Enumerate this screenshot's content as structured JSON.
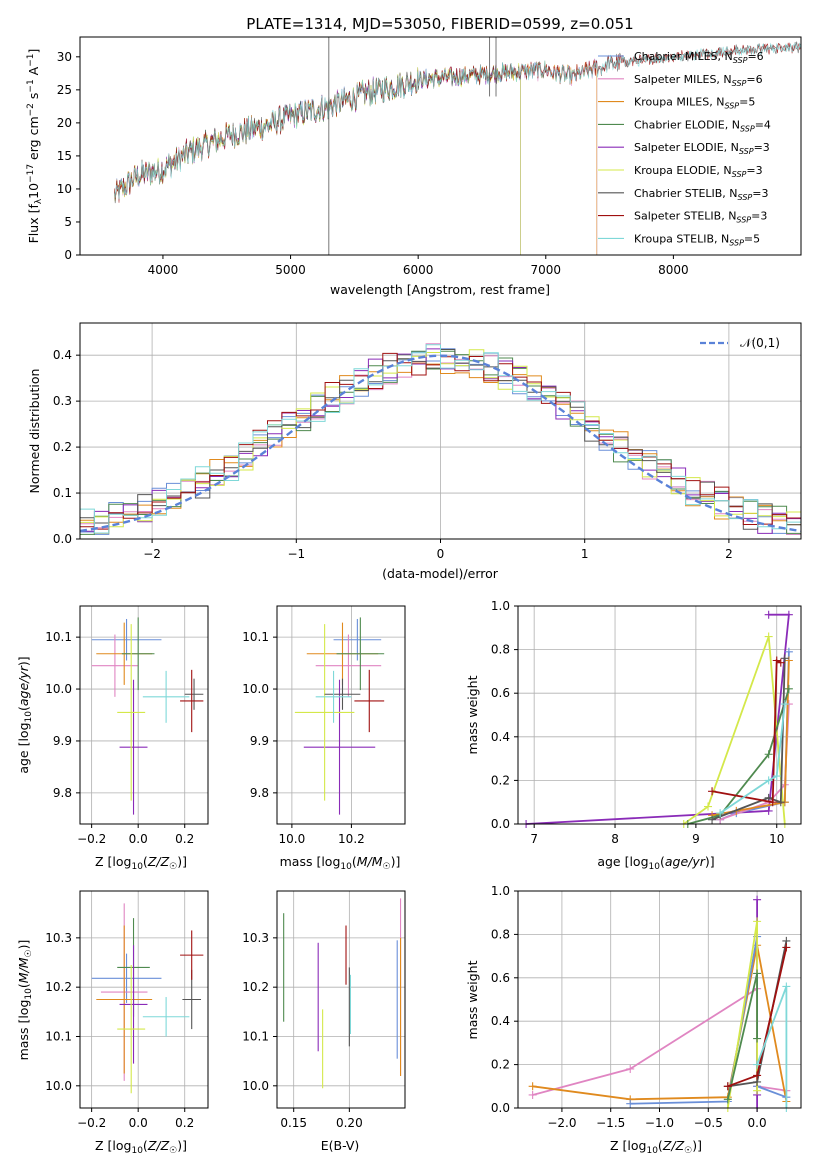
{
  "spec_title": "PLATE=1314, MJD=53050, FIBERID=0599, z=0.051",
  "colors": {
    "Chabrier MILES": "#6a8fd8",
    "Salpeter MILES": "#e085c2",
    "Kroupa MILES": "#e08a1e",
    "Chabrier ELODIE": "#4f8a4f",
    "Salpeter ELODIE": "#8a2bb8",
    "Kroupa ELODIE": "#d4e84a",
    "Chabrier STELIB": "#555555",
    "Salpeter STELIB": "#a01010",
    "Kroupa STELIB": "#7fd8d8"
  },
  "chart_data": [
    {
      "id": "spectrum",
      "type": "line",
      "title": "PLATE=1314, MJD=53050, FIBERID=0599, z=0.051",
      "xlabel": "wavelength [Angstrom, rest frame]",
      "ylabel": "Flux [f_λ10^-17 erg cm^-2 s^-1 A^-1]",
      "xlim": [
        3350,
        9000
      ],
      "ylim": [
        0,
        33
      ],
      "xticks": [
        4000,
        5000,
        6000,
        7000,
        8000
      ],
      "yticks": [
        0,
        5,
        10,
        15,
        20,
        25,
        30
      ],
      "grid": false,
      "legend_position": "top-right",
      "legend": [
        {
          "model": "Chabrier MILES",
          "n": "6"
        },
        {
          "model": "Salpeter MILES",
          "n": "6"
        },
        {
          "model": "Kroupa MILES",
          "n": "5"
        },
        {
          "model": "Chabrier ELODIE",
          "n": "4"
        },
        {
          "model": "Salpeter ELODIE",
          "n": "3"
        },
        {
          "model": "Kroupa ELODIE",
          "n": "3"
        },
        {
          "model": "Chabrier STELIB",
          "n": "3"
        },
        {
          "model": "Salpeter STELIB",
          "n": "3"
        },
        {
          "model": "Kroupa STELIB",
          "n": "5"
        }
      ],
      "continuum": [
        [
          3620,
          9
        ],
        [
          3800,
          12
        ],
        [
          4000,
          13
        ],
        [
          4200,
          15.5
        ],
        [
          4500,
          18
        ],
        [
          4800,
          19.5
        ],
        [
          5000,
          21
        ],
        [
          5300,
          22.5
        ],
        [
          5600,
          24.5
        ],
        [
          6000,
          26.5
        ],
        [
          6300,
          27
        ],
        [
          6600,
          27.5
        ],
        [
          7000,
          28
        ],
        [
          7200,
          27
        ],
        [
          7500,
          29
        ],
        [
          8000,
          30
        ],
        [
          8500,
          31
        ],
        [
          9000,
          31.5
        ]
      ],
      "model_ranges": [
        {
          "model": "Chabrier MILES",
          "x": [
            3620,
            7400
          ]
        },
        {
          "model": "Salpeter MILES",
          "x": [
            3620,
            7400
          ]
        },
        {
          "model": "Kroupa MILES",
          "x": [
            3620,
            7400
          ]
        },
        {
          "model": "Chabrier ELODIE",
          "x": [
            3620,
            6800
          ]
        },
        {
          "model": "Salpeter ELODIE",
          "x": [
            3620,
            6800
          ]
        },
        {
          "model": "Kroupa ELODIE",
          "x": [
            3620,
            6800
          ]
        },
        {
          "model": "Chabrier STELIB",
          "x": [
            3620,
            9000
          ]
        },
        {
          "model": "Salpeter STELIB",
          "x": [
            3620,
            9000
          ]
        },
        {
          "model": "Kroupa STELIB",
          "x": [
            3620,
            9000
          ]
        }
      ]
    },
    {
      "id": "residuals",
      "type": "area",
      "xlabel": "(data-model)/error",
      "ylabel": "Normed distribution",
      "xlim": [
        -2.5,
        2.5
      ],
      "ylim": [
        0,
        0.47
      ],
      "xticks": [
        -2,
        -1,
        0,
        1,
        2
      ],
      "yticks": [
        0.0,
        0.1,
        0.2,
        0.3,
        0.4
      ],
      "grid": true,
      "legend_position": "top-right",
      "reference_curve": {
        "label": "𝒩(0,1)",
        "color": "#5a82d8",
        "mean": 0,
        "sigma": 1
      },
      "histogram_bins": {
        "start": -2.5,
        "width": 0.1,
        "count": 50
      }
    },
    {
      "id": "age-vs-Z",
      "type": "scatter",
      "xlabel": "Z [log10(Z/Z☉)]",
      "ylabel": "age  [log10(age/yr)]",
      "xlim": [
        -0.25,
        0.3
      ],
      "ylim": [
        9.74,
        10.16
      ],
      "xticks": [
        "−0.2",
        "0.0",
        "0.2"
      ],
      "yticks": [
        "9.8",
        "9.9",
        "10.0",
        "10.1"
      ],
      "grid": true,
      "points": [
        {
          "model": "Chabrier MILES",
          "x": -0.05,
          "y": 10.095,
          "xerr": 0.15,
          "yerr": 0.04
        },
        {
          "model": "Salpeter MILES",
          "x": -0.1,
          "y": 10.045,
          "xerr": 0.1,
          "yerr": 0.06
        },
        {
          "model": "Kroupa MILES",
          "x": -0.06,
          "y": 10.068,
          "xerr": 0.12,
          "yerr": 0.06
        },
        {
          "model": "Chabrier ELODIE",
          "x": 0.0,
          "y": 10.068,
          "xerr": 0.07,
          "yerr": 0.07
        },
        {
          "model": "Salpeter ELODIE",
          "x": -0.02,
          "y": 9.888,
          "xerr": 0.06,
          "yerr": 0.13
        },
        {
          "model": "Kroupa ELODIE",
          "x": -0.03,
          "y": 9.955,
          "xerr": 0.06,
          "yerr": 0.17
        },
        {
          "model": "Chabrier STELIB",
          "x": 0.24,
          "y": 9.99,
          "xerr": 0.04,
          "yerr": 0.03
        },
        {
          "model": "Salpeter STELIB",
          "x": 0.23,
          "y": 9.977,
          "xerr": 0.05,
          "yerr": 0.06
        },
        {
          "model": "Kroupa STELIB",
          "x": 0.12,
          "y": 9.985,
          "xerr": 0.1,
          "yerr": 0.05
        }
      ]
    },
    {
      "id": "age-vs-mass",
      "type": "scatter",
      "xlabel": "mass [log10(M/M☉)]",
      "ylabel": "",
      "xlim": [
        9.95,
        10.38
      ],
      "ylim": [
        9.74,
        10.16
      ],
      "xticks": [
        "10.0",
        "10.2"
      ],
      "yticks": [
        "9.8",
        "9.9",
        "10.0",
        "10.1"
      ],
      "grid": true,
      "points": [
        {
          "model": "Chabrier MILES",
          "x": 10.22,
          "y": 10.095,
          "xerr": 0.08,
          "yerr": 0.04
        },
        {
          "model": "Salpeter MILES",
          "x": 10.19,
          "y": 10.045,
          "xerr": 0.11,
          "yerr": 0.06
        },
        {
          "model": "Kroupa MILES",
          "x": 10.17,
          "y": 10.068,
          "xerr": 0.12,
          "yerr": 0.06
        },
        {
          "model": "Chabrier ELODIE",
          "x": 10.23,
          "y": 10.068,
          "xerr": 0.08,
          "yerr": 0.07
        },
        {
          "model": "Salpeter ELODIE",
          "x": 10.16,
          "y": 9.888,
          "xerr": 0.12,
          "yerr": 0.13
        },
        {
          "model": "Kroupa ELODIE",
          "x": 10.11,
          "y": 9.955,
          "xerr": 0.1,
          "yerr": 0.17
        },
        {
          "model": "Chabrier STELIB",
          "x": 10.17,
          "y": 9.99,
          "xerr": 0.06,
          "yerr": 0.03
        },
        {
          "model": "Salpeter STELIB",
          "x": 10.26,
          "y": 9.977,
          "xerr": 0.05,
          "yerr": 0.06
        },
        {
          "model": "Kroupa STELIB",
          "x": 10.14,
          "y": 9.985,
          "xerr": 0.06,
          "yerr": 0.05
        }
      ]
    },
    {
      "id": "mass-weight-vs-age",
      "type": "line",
      "xlabel": "age  [log10(age/yr)]",
      "ylabel": "mass weight",
      "xlim": [
        6.8,
        10.3
      ],
      "ylim": [
        0,
        1.0
      ],
      "xticks": [
        "7",
        "8",
        "9",
        "10"
      ],
      "yticks": [
        "0.0",
        "0.2",
        "0.4",
        "0.6",
        "0.8",
        "1.0"
      ],
      "grid": true,
      "series": [
        {
          "model": "Salpeter ELODIE",
          "x": [
            6.9,
            9.9,
            10.15,
            9.9
          ],
          "y": [
            0.0,
            0.06,
            0.96,
            0.96
          ]
        },
        {
          "model": "Kroupa ELODIE",
          "x": [
            8.85,
            9.15,
            9.9,
            10.1
          ],
          "y": [
            0.0,
            0.08,
            0.86,
            0.0
          ]
        },
        {
          "model": "Chabrier MILES",
          "x": [
            9.3,
            9.5,
            10.1,
            10.15
          ],
          "y": [
            0.02,
            0.05,
            0.1,
            0.79
          ]
        },
        {
          "model": "Salpeter MILES",
          "x": [
            9.3,
            9.9,
            10.1,
            10.15
          ],
          "y": [
            0.02,
            0.1,
            0.18,
            0.55
          ]
        },
        {
          "model": "Kroupa MILES",
          "x": [
            9.2,
            9.5,
            10.1,
            10.15
          ],
          "y": [
            0.04,
            0.06,
            0.1,
            0.75
          ]
        },
        {
          "model": "Chabrier ELODIE",
          "x": [
            8.9,
            9.3,
            9.9,
            10.15
          ],
          "y": [
            0.0,
            0.04,
            0.32,
            0.62
          ]
        },
        {
          "model": "Chabrier STELIB",
          "x": [
            9.2,
            9.9,
            10.05,
            10.1
          ],
          "y": [
            0.02,
            0.12,
            0.1,
            0.76
          ]
        },
        {
          "model": "Salpeter STELIB",
          "x": [
            9.2,
            9.95,
            10.0,
            10.05
          ],
          "y": [
            0.15,
            0.1,
            0.75,
            0.74
          ]
        },
        {
          "model": "Kroupa STELIB",
          "x": [
            9.3,
            9.9,
            10.0,
            10.1
          ],
          "y": [
            0.05,
            0.2,
            0.22,
            0.55
          ]
        }
      ]
    },
    {
      "id": "mass-vs-Z",
      "type": "scatter",
      "xlabel": "Z [log10(Z/Z☉)]",
      "ylabel": "mass [log10(M/M☉)]",
      "xlim": [
        -0.25,
        0.3
      ],
      "ylim": [
        9.955,
        10.395
      ],
      "xticks": [
        "−0.2",
        "0.0",
        "0.2"
      ],
      "yticks": [
        "10.0",
        "10.1",
        "10.2",
        "10.3"
      ],
      "grid": true,
      "points": [
        {
          "model": "Chabrier MILES",
          "x": -0.05,
          "y": 10.218,
          "xerr": 0.15,
          "yerr": 0.05
        },
        {
          "model": "Salpeter MILES",
          "x": -0.06,
          "y": 10.19,
          "xerr": 0.1,
          "yerr": 0.18
        },
        {
          "model": "Kroupa MILES",
          "x": -0.06,
          "y": 10.175,
          "xerr": 0.12,
          "yerr": 0.15
        },
        {
          "model": "Chabrier ELODIE",
          "x": -0.02,
          "y": 10.24,
          "xerr": 0.07,
          "yerr": 0.1
        },
        {
          "model": "Salpeter ELODIE",
          "x": -0.02,
          "y": 10.165,
          "xerr": 0.06,
          "yerr": 0.12
        },
        {
          "model": "Kroupa ELODIE",
          "x": -0.03,
          "y": 10.115,
          "xerr": 0.06,
          "yerr": 0.13
        },
        {
          "model": "Chabrier STELIB",
          "x": 0.23,
          "y": 10.175,
          "xerr": 0.04,
          "yerr": 0.06
        },
        {
          "model": "Salpeter STELIB",
          "x": 0.23,
          "y": 10.265,
          "xerr": 0.05,
          "yerr": 0.05
        },
        {
          "model": "Kroupa STELIB",
          "x": 0.12,
          "y": 10.14,
          "xerr": 0.1,
          "yerr": 0.04
        }
      ]
    },
    {
      "id": "mass-vs-ebv",
      "type": "scatter",
      "xlabel": "E(B-V)",
      "ylabel": "",
      "xlim": [
        0.135,
        0.25
      ],
      "ylim": [
        9.955,
        10.395
      ],
      "xticks": [
        "0.15",
        "0.20"
      ],
      "yticks": [
        "10.0",
        "10.1",
        "10.2",
        "10.3"
      ],
      "grid": true,
      "points": [
        {
          "model": "Chabrier MILES",
          "x": 0.243,
          "y": 10.175,
          "yerr": 0.12
        },
        {
          "model": "Salpeter MILES",
          "x": 0.246,
          "y": 10.2,
          "yerr": 0.18
        },
        {
          "model": "Kroupa MILES",
          "x": 0.246,
          "y": 10.16,
          "yerr": 0.14
        },
        {
          "model": "Chabrier ELODIE",
          "x": 0.141,
          "y": 10.24,
          "yerr": 0.11
        },
        {
          "model": "Salpeter ELODIE",
          "x": 0.172,
          "y": 10.18,
          "yerr": 0.11
        },
        {
          "model": "Kroupa ELODIE",
          "x": 0.176,
          "y": 10.075,
          "yerr": 0.08
        },
        {
          "model": "Chabrier STELIB",
          "x": 0.2,
          "y": 10.16,
          "yerr": 0.08
        },
        {
          "model": "Salpeter STELIB",
          "x": 0.197,
          "y": 10.265,
          "yerr": 0.06
        },
        {
          "model": "Kroupa STELIB",
          "x": 0.201,
          "y": 10.165,
          "yerr": 0.06
        }
      ]
    },
    {
      "id": "mass-weight-vs-Z",
      "type": "line",
      "xlabel": "Z [log10(Z/Z☉)]",
      "ylabel": "mass weight",
      "xlim": [
        -2.45,
        0.45
      ],
      "ylim": [
        0,
        1.0
      ],
      "xticks": [
        "−2.0",
        "−1.5",
        "−1.0",
        "−0.5",
        "0.0"
      ],
      "yticks": [
        "0.0",
        "0.2",
        "0.4",
        "0.6",
        "0.8",
        "1.0"
      ],
      "grid": true,
      "series": [
        {
          "model": "Salpeter MILES",
          "x": [
            -2.3,
            -1.3,
            0.0,
            0.0,
            0.3
          ],
          "y": [
            0.06,
            0.18,
            0.55,
            0.1,
            0.08
          ]
        },
        {
          "model": "Kroupa MILES",
          "x": [
            -2.3,
            -1.3,
            -0.3,
            0.0,
            0.3
          ],
          "y": [
            0.1,
            0.04,
            0.05,
            0.75,
            0.03
          ]
        },
        {
          "model": "Chabrier MILES",
          "x": [
            -1.3,
            -0.3,
            0.0,
            0.0,
            0.3
          ],
          "y": [
            0.02,
            0.03,
            0.79,
            0.1,
            0.05
          ]
        },
        {
          "model": "Salpeter ELODIE",
          "x": [
            0.0,
            0.0,
            0.0
          ],
          "y": [
            0.0,
            0.96,
            0.06
          ]
        },
        {
          "model": "Kroupa ELODIE",
          "x": [
            -0.3,
            0.0,
            0.0
          ],
          "y": [
            0.0,
            0.86,
            0.08
          ]
        },
        {
          "model": "Chabrier ELODIE",
          "x": [
            -0.3,
            0.0,
            0.0
          ],
          "y": [
            0.04,
            0.62,
            0.32
          ]
        },
        {
          "model": "Chabrier STELIB",
          "x": [
            -0.3,
            0.0,
            0.3
          ],
          "y": [
            0.1,
            0.12,
            0.77
          ]
        },
        {
          "model": "Salpeter STELIB",
          "x": [
            -0.3,
            0.0,
            0.3
          ],
          "y": [
            0.1,
            0.15,
            0.74
          ]
        },
        {
          "model": "Kroupa STELIB",
          "x": [
            0.0,
            0.3,
            0.3
          ],
          "y": [
            0.2,
            0.56,
            0.0
          ]
        }
      ]
    }
  ]
}
